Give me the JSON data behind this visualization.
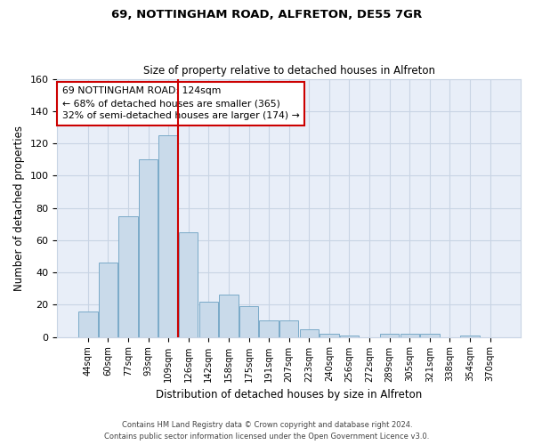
{
  "title1": "69, NOTTINGHAM ROAD, ALFRETON, DE55 7GR",
  "title2": "Size of property relative to detached houses in Alfreton",
  "xlabel": "Distribution of detached houses by size in Alfreton",
  "ylabel": "Number of detached properties",
  "categories": [
    "44sqm",
    "60sqm",
    "77sqm",
    "93sqm",
    "109sqm",
    "126sqm",
    "142sqm",
    "158sqm",
    "175sqm",
    "191sqm",
    "207sqm",
    "223sqm",
    "240sqm",
    "256sqm",
    "272sqm",
    "289sqm",
    "305sqm",
    "321sqm",
    "338sqm",
    "354sqm",
    "370sqm"
  ],
  "bar_heights": [
    16,
    46,
    75,
    110,
    125,
    65,
    22,
    26,
    19,
    10,
    10,
    5,
    2,
    1,
    0,
    2,
    2,
    2,
    0,
    1,
    0
  ],
  "bar_color": "#c9daea",
  "bar_edge_color": "#7aaac8",
  "grid_color": "#c8d4e4",
  "background_color": "#e8eef8",
  "red_line_index": 5,
  "annotation_text": "69 NOTTINGHAM ROAD: 124sqm\n← 68% of detached houses are smaller (365)\n32% of semi-detached houses are larger (174) →",
  "annotation_box_color": "#ffffff",
  "annotation_box_edge": "#cc0000",
  "red_line_color": "#cc0000",
  "ylim": [
    0,
    160
  ],
  "yticks": [
    0,
    20,
    40,
    60,
    80,
    100,
    120,
    140,
    160
  ],
  "footer1": "Contains HM Land Registry data © Crown copyright and database right 2024.",
  "footer2": "Contains public sector information licensed under the Open Government Licence v3.0."
}
